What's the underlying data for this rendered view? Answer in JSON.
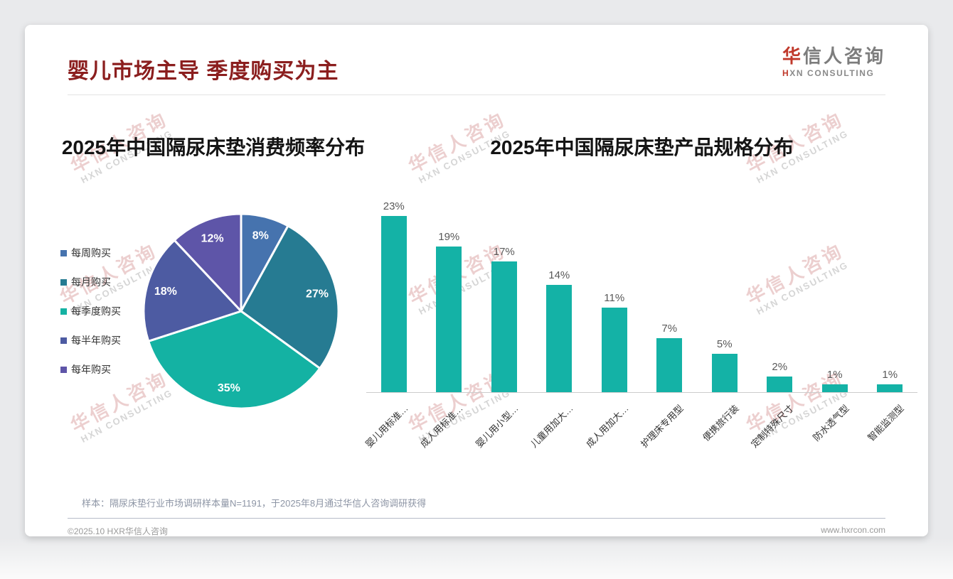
{
  "page": {
    "title": "婴儿市场主导 季度购买为主",
    "logo": {
      "cn_first": "华",
      "cn_rest": "信人咨询",
      "en_first": "H",
      "en_rest": "XN CONSULTING"
    },
    "watermark": {
      "line1": "华信人咨询",
      "line2": "HXN CONSULTING"
    },
    "note": "样本：隔尿床垫行业市场调研样本量N=1191，于2025年8月通过华信人咨询调研获得",
    "footer_left": "©2025.10 HXR华信人咨询",
    "footer_right": "www.hxrcon.com"
  },
  "colors": {
    "accent_red": "#c0392b",
    "title_red": "#8b1e1e",
    "bar_teal": "#14b2a6",
    "axis_line": "#cccccc"
  },
  "chart_data": [
    {
      "type": "pie",
      "title": "2025年中国隔尿床垫消费频率分布",
      "categories": [
        "每周购买",
        "每月购买",
        "每季度购买",
        "每半年购买",
        "每年购买"
      ],
      "values": [
        8,
        27,
        35,
        18,
        12
      ],
      "labels": [
        "8%",
        "27%",
        "35%",
        "18%",
        "12%"
      ],
      "colors": [
        "#4673ae",
        "#267b92",
        "#14b2a3",
        "#4d5ba2",
        "#5e55a8"
      ],
      "legend_position": "left",
      "start_angle_deg": 0,
      "label_color": "#ffffff"
    },
    {
      "type": "bar",
      "title": "2025年中国隔尿床垫产品规格分布",
      "categories": [
        "婴儿用标准…",
        "成人用标准…",
        "婴儿用小型…",
        "儿童用加大…",
        "成人用加大…",
        "护理床专用型",
        "便携旅行装",
        "定制特殊尺寸",
        "防水透气型",
        "智能监测型"
      ],
      "values": [
        23,
        19,
        17,
        14,
        11,
        7,
        5,
        2,
        1,
        1
      ],
      "labels": [
        "23%",
        "19%",
        "17%",
        "14%",
        "11%",
        "7%",
        "5%",
        "2%",
        "1%",
        "1%"
      ],
      "bar_color": "#14b2a6",
      "ylim": [
        0,
        25
      ],
      "grid": false,
      "xlabel": "",
      "ylabel": ""
    }
  ]
}
